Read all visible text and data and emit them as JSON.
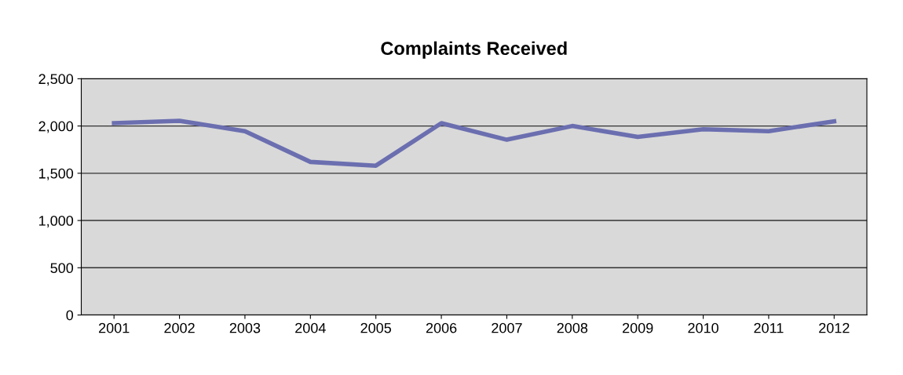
{
  "chart_data": {
    "type": "line",
    "title": "Complaints Received",
    "categories": [
      "2001",
      "2002",
      "2003",
      "2004",
      "2005",
      "2006",
      "2007",
      "2008",
      "2009",
      "2010",
      "2011",
      "2012"
    ],
    "series": [
      {
        "color": "#6b6fb0",
        "values": [
          2030,
          2055,
          1945,
          1620,
          1580,
          2030,
          1855,
          2000,
          1885,
          1965,
          1945,
          2050
        ]
      }
    ],
    "ylim": [
      0,
      2500
    ],
    "yticks": [
      {
        "value": 0,
        "label": "0"
      },
      {
        "value": 500,
        "label": "500"
      },
      {
        "value": 1000,
        "label": "1,000"
      },
      {
        "value": 1500,
        "label": "1,500"
      },
      {
        "value": 2000,
        "label": "2,000"
      },
      {
        "value": 2500,
        "label": "2,500"
      }
    ],
    "grid": "y",
    "legend": false,
    "marker": "none",
    "line_style": "solid"
  }
}
